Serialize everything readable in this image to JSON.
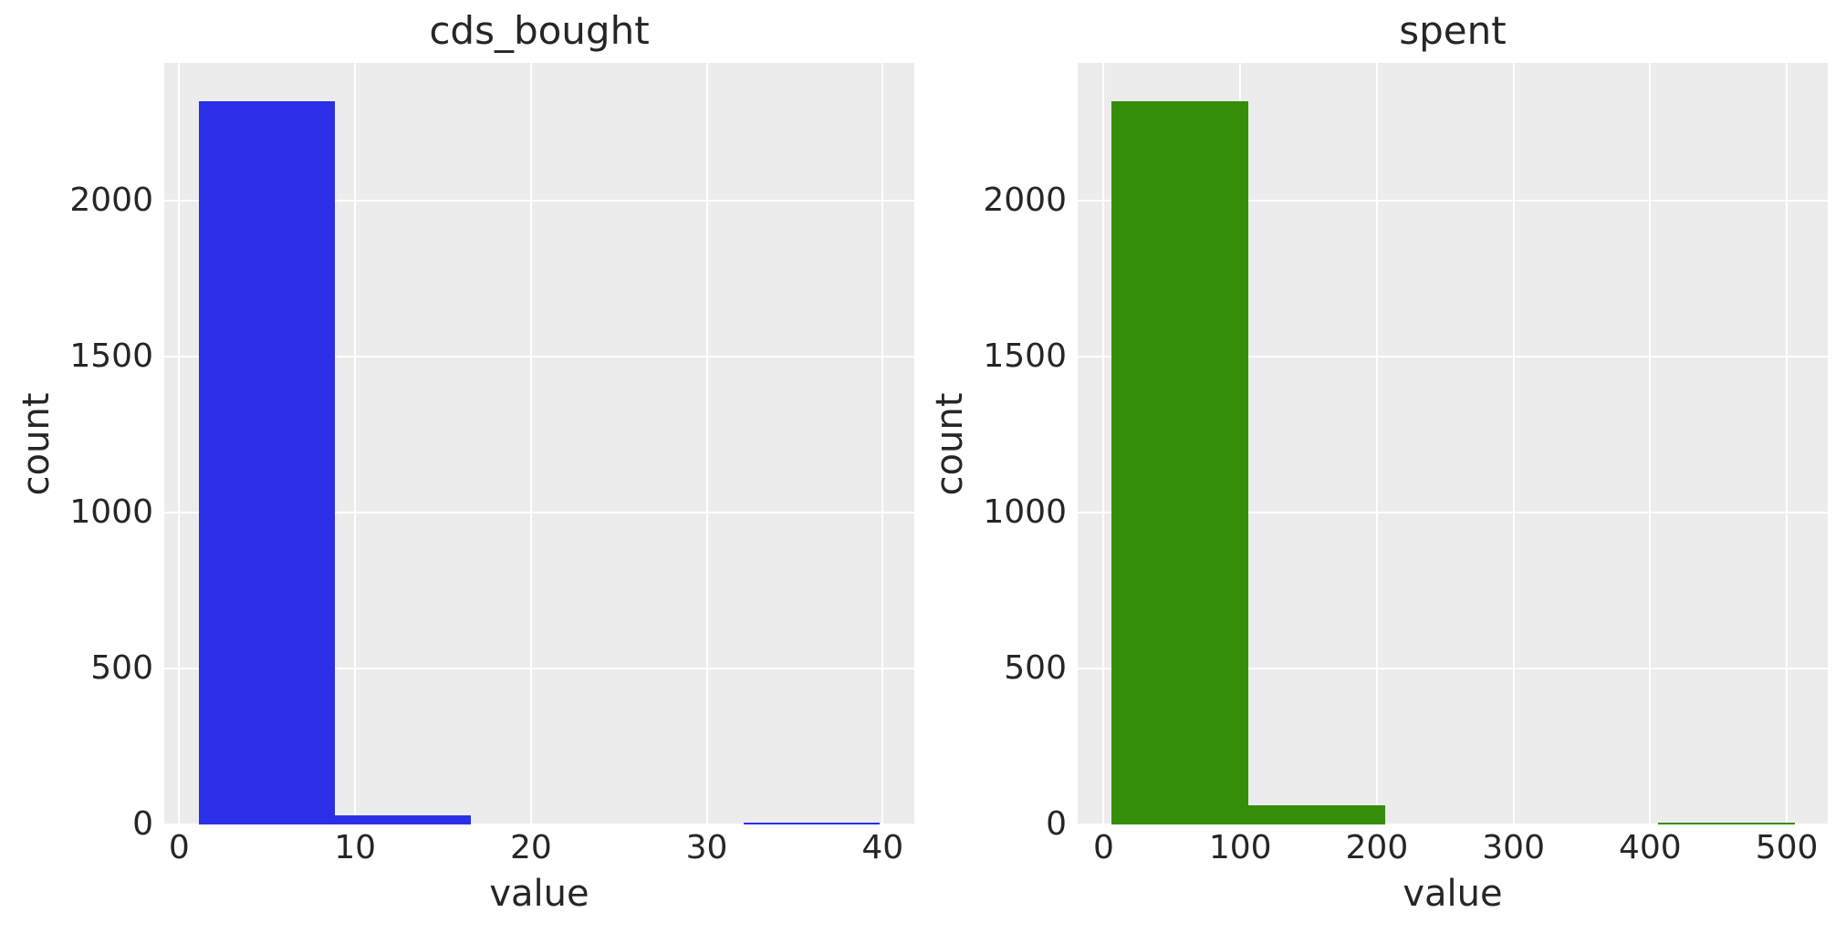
{
  "figure": {
    "background": "#ffffff",
    "plot_background": "#ececec",
    "grid_color": "#ffffff",
    "text_color": "#262626"
  },
  "chart_data": [
    {
      "type": "bar",
      "subtype": "histogram",
      "title": "cds_bought",
      "xlabel": "value",
      "ylabel": "count",
      "bar_color": "#2b2fe8",
      "bin_edges": [
        1.1,
        8.85,
        16.6,
        24.35,
        32.1,
        39.85
      ],
      "counts": [
        2320,
        30,
        0,
        0,
        5
      ],
      "xticks": [
        0,
        10,
        20,
        30,
        40
      ],
      "yticks": [
        0,
        500,
        1000,
        1500,
        2000
      ],
      "xlim": [
        -0.85,
        41.8
      ],
      "ylim": [
        0,
        2442
      ],
      "grid": true,
      "legend": false
    },
    {
      "type": "bar",
      "subtype": "histogram",
      "title": "spent",
      "xlabel": "value",
      "ylabel": "count",
      "bar_color": "#358e09",
      "bin_edges": [
        6,
        106,
        206,
        306,
        406,
        506
      ],
      "counts": [
        2320,
        60,
        0,
        0,
        5
      ],
      "xticks": [
        0,
        100,
        200,
        300,
        400,
        500
      ],
      "yticks": [
        0,
        500,
        1000,
        1500,
        2000
      ],
      "xlim": [
        -19,
        530
      ],
      "ylim": [
        0,
        2442
      ],
      "grid": true,
      "legend": false
    }
  ]
}
